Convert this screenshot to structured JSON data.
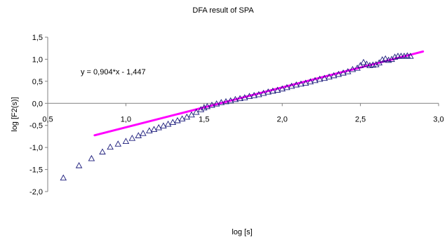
{
  "chart_data": {
    "type": "scatter",
    "title": "DFA result of SPA",
    "xlabel": "log [s]",
    "ylabel": "log [F2(s)]",
    "xlim": [
      0.5,
      3.0
    ],
    "ylim": [
      -2.0,
      1.5
    ],
    "x_ticks": [
      "0,5",
      "1,0",
      "1,5",
      "2,0",
      "2,5",
      "3,0"
    ],
    "y_ticks": [
      "1,5",
      "1,0",
      "0,5",
      "0,0",
      "-0,5",
      "-1,0",
      "-1,5",
      "-2,0"
    ],
    "grid": false,
    "annotation": "y = 0,904*x - 1,447",
    "series": [
      {
        "type": "scatter",
        "marker": "triangle-open",
        "color": "#1a1a7a",
        "points": [
          [
            0.6,
            -1.69
          ],
          [
            0.7,
            -1.41
          ],
          [
            0.78,
            -1.25
          ],
          [
            0.85,
            -1.1
          ],
          [
            0.9,
            -0.99
          ],
          [
            0.95,
            -0.92
          ],
          [
            1.0,
            -0.86
          ],
          [
            1.04,
            -0.79
          ],
          [
            1.08,
            -0.73
          ],
          [
            1.11,
            -0.68
          ],
          [
            1.15,
            -0.62
          ],
          [
            1.18,
            -0.59
          ],
          [
            1.21,
            -0.55
          ],
          [
            1.24,
            -0.51
          ],
          [
            1.27,
            -0.47
          ],
          [
            1.3,
            -0.43
          ],
          [
            1.33,
            -0.39
          ],
          [
            1.36,
            -0.35
          ],
          [
            1.39,
            -0.31
          ],
          [
            1.42,
            -0.26
          ],
          [
            1.45,
            -0.2
          ],
          [
            1.48,
            -0.14
          ],
          [
            1.5,
            -0.1
          ],
          [
            1.52,
            -0.07
          ],
          [
            1.55,
            -0.04
          ],
          [
            1.58,
            -0.01
          ],
          [
            1.61,
            0.02
          ],
          [
            1.64,
            0.04
          ],
          [
            1.67,
            0.06
          ],
          [
            1.7,
            0.09
          ],
          [
            1.73,
            0.11
          ],
          [
            1.76,
            0.13
          ],
          [
            1.79,
            0.16
          ],
          [
            1.82,
            0.18
          ],
          [
            1.85,
            0.2
          ],
          [
            1.88,
            0.23
          ],
          [
            1.91,
            0.26
          ],
          [
            1.94,
            0.28
          ],
          [
            1.97,
            0.3
          ],
          [
            2.0,
            0.33
          ],
          [
            2.03,
            0.36
          ],
          [
            2.06,
            0.39
          ],
          [
            2.09,
            0.42
          ],
          [
            2.12,
            0.44
          ],
          [
            2.15,
            0.46
          ],
          [
            2.18,
            0.49
          ],
          [
            2.21,
            0.52
          ],
          [
            2.24,
            0.55
          ],
          [
            2.27,
            0.57
          ],
          [
            2.3,
            0.6
          ],
          [
            2.33,
            0.63
          ],
          [
            2.36,
            0.66
          ],
          [
            2.39,
            0.69
          ],
          [
            2.42,
            0.72
          ],
          [
            2.45,
            0.77
          ],
          [
            2.48,
            0.8
          ],
          [
            2.5,
            0.86
          ],
          [
            2.52,
            0.93
          ],
          [
            2.54,
            0.89
          ],
          [
            2.56,
            0.86
          ],
          [
            2.58,
            0.87
          ],
          [
            2.6,
            0.88
          ],
          [
            2.62,
            0.92
          ],
          [
            2.64,
            0.99
          ],
          [
            2.66,
            1.01
          ],
          [
            2.68,
            0.98
          ],
          [
            2.7,
            1.0
          ],
          [
            2.72,
            1.05
          ],
          [
            2.74,
            1.07
          ],
          [
            2.76,
            1.07
          ],
          [
            2.78,
            1.07
          ],
          [
            2.8,
            1.08
          ],
          [
            2.82,
            1.07
          ]
        ]
      },
      {
        "type": "line",
        "color": "#ff00ff",
        "fit": {
          "slope": 0.904,
          "intercept": -1.447
        },
        "x_range": [
          0.8,
          2.9
        ]
      }
    ]
  }
}
